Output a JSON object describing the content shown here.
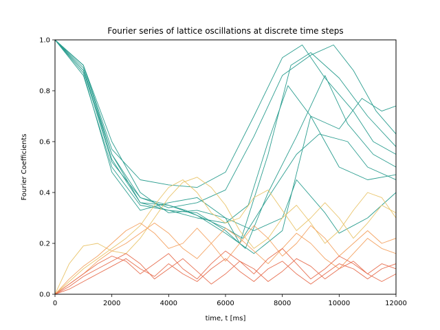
{
  "chart_data": {
    "type": "line",
    "title": "Fourier series of lattice oscillations at discrete time steps",
    "xlabel": "time, t [ms]",
    "ylabel": "Fourier Coefficients",
    "xlim": [
      0,
      12000
    ],
    "ylim": [
      0,
      1.0
    ],
    "xticks": [
      0,
      2000,
      4000,
      6000,
      8000,
      10000,
      12000
    ],
    "yticks": [
      0.0,
      0.2,
      0.4,
      0.6,
      0.8,
      1.0
    ],
    "xtick_labels": [
      "0",
      "2000",
      "4000",
      "6000",
      "8000",
      "10000",
      "12000"
    ],
    "ytick_labels": [
      "0.0",
      "0.2",
      "0.4",
      "0.6",
      "0.8",
      "1.0"
    ],
    "grid": false,
    "legend": false,
    "colors": {
      "teal": "#2a9d8f",
      "sand": "#e9c46a",
      "orange": "#f4a261",
      "coral": "#e76f51"
    },
    "series": [
      {
        "color": "#2a9d8f",
        "x": [
          0,
          1000,
          2000,
          3000,
          4000,
          5000,
          6000,
          7000,
          8000,
          8700,
          9500,
          10500,
          11200,
          12000
        ],
        "y": [
          1.0,
          0.9,
          0.57,
          0.45,
          0.43,
          0.42,
          0.48,
          0.7,
          0.93,
          0.98,
          0.85,
          0.72,
          0.6,
          0.55
        ]
      },
      {
        "color": "#2a9d8f",
        "x": [
          0,
          1000,
          2000,
          3000,
          4000,
          5000,
          6000,
          7000,
          8000,
          9000,
          9800,
          10500,
          11300,
          12000
        ],
        "y": [
          1.0,
          0.88,
          0.52,
          0.38,
          0.34,
          0.36,
          0.41,
          0.62,
          0.86,
          0.94,
          0.98,
          0.88,
          0.72,
          0.63
        ]
      },
      {
        "color": "#2a9d8f",
        "x": [
          0,
          1000,
          2000,
          3000,
          4000,
          5000,
          6000,
          6800,
          7500,
          8200,
          9000,
          10000,
          11000,
          12000
        ],
        "y": [
          1.0,
          0.9,
          0.55,
          0.36,
          0.33,
          0.3,
          0.28,
          0.35,
          0.6,
          0.82,
          0.7,
          0.5,
          0.45,
          0.47
        ]
      },
      {
        "color": "#2a9d8f",
        "x": [
          0,
          1000,
          2000,
          3000,
          4000,
          5000,
          6000,
          6500,
          7500,
          8300,
          9000,
          10000,
          11000,
          12000
        ],
        "y": [
          1.0,
          0.87,
          0.48,
          0.33,
          0.36,
          0.38,
          0.3,
          0.2,
          0.55,
          0.9,
          0.95,
          0.85,
          0.7,
          0.58
        ]
      },
      {
        "color": "#2a9d8f",
        "x": [
          0,
          1000,
          2000,
          3000,
          4000,
          5000,
          6000,
          6700,
          7500,
          8500,
          9500,
          10300,
          11200,
          12000
        ],
        "y": [
          1.0,
          0.86,
          0.5,
          0.35,
          0.33,
          0.32,
          0.25,
          0.18,
          0.4,
          0.62,
          0.86,
          0.67,
          0.55,
          0.5
        ]
      },
      {
        "color": "#2a9d8f",
        "x": [
          0,
          1000,
          2000,
          3000,
          4000,
          4600,
          5200,
          6000,
          6600,
          7500,
          8500,
          9300,
          10300,
          11000,
          12000
        ],
        "y": [
          1.0,
          0.88,
          0.55,
          0.38,
          0.35,
          0.33,
          0.3,
          0.26,
          0.22,
          0.38,
          0.55,
          0.63,
          0.6,
          0.5,
          0.45
        ]
      },
      {
        "color": "#2a9d8f",
        "x": [
          0,
          1000,
          2000,
          3000,
          4000,
          5000,
          6000,
          7000,
          8000,
          8500,
          9500,
          10000,
          11000,
          12000
        ],
        "y": [
          1.0,
          0.9,
          0.6,
          0.4,
          0.32,
          0.33,
          0.3,
          0.25,
          0.3,
          0.45,
          0.32,
          0.24,
          0.3,
          0.4
        ]
      },
      {
        "color": "#2a9d8f",
        "x": [
          0,
          1000,
          2000,
          3000,
          4000,
          5000,
          6000,
          7000,
          8000,
          9000,
          10000,
          10800,
          11500,
          12000
        ],
        "y": [
          1.0,
          0.89,
          0.53,
          0.36,
          0.35,
          0.31,
          0.24,
          0.16,
          0.25,
          0.7,
          0.65,
          0.77,
          0.72,
          0.74
        ]
      },
      {
        "color": "#e9c46a",
        "x": [
          0,
          500,
          1000,
          1500,
          2000,
          2500,
          3000,
          3500,
          4000,
          4500,
          5000,
          5500,
          6000,
          6500,
          7000,
          7500,
          8000,
          8500,
          9000,
          9500,
          10000,
          10500,
          11000,
          11500,
          12000
        ],
        "y": [
          0.0,
          0.12,
          0.19,
          0.2,
          0.17,
          0.16,
          0.22,
          0.3,
          0.38,
          0.44,
          0.46,
          0.42,
          0.35,
          0.25,
          0.18,
          0.22,
          0.3,
          0.35,
          0.28,
          0.2,
          0.25,
          0.33,
          0.4,
          0.38,
          0.3
        ]
      },
      {
        "color": "#e9c46a",
        "x": [
          0,
          500,
          1000,
          1500,
          2000,
          2500,
          3000,
          3500,
          4000,
          4500,
          5000,
          5500,
          6000,
          6500,
          7000,
          7500,
          8000,
          8500,
          9000,
          9500,
          10000,
          10500,
          11000,
          11500,
          12000
        ],
        "y": [
          0.0,
          0.05,
          0.1,
          0.14,
          0.18,
          0.22,
          0.27,
          0.35,
          0.42,
          0.45,
          0.4,
          0.32,
          0.28,
          0.3,
          0.38,
          0.41,
          0.33,
          0.25,
          0.3,
          0.36,
          0.3,
          0.22,
          0.28,
          0.35,
          0.32
        ]
      },
      {
        "color": "#f4a261",
        "x": [
          0,
          500,
          1000,
          1500,
          2000,
          2500,
          3000,
          3500,
          4000,
          4500,
          5000,
          5500,
          6000,
          6500,
          7000,
          7500,
          8000,
          8500,
          9000,
          9500,
          10000,
          10500,
          11000,
          11500,
          12000
        ],
        "y": [
          0.0,
          0.06,
          0.11,
          0.15,
          0.2,
          0.25,
          0.28,
          0.24,
          0.18,
          0.2,
          0.26,
          0.2,
          0.13,
          0.2,
          0.27,
          0.22,
          0.15,
          0.2,
          0.27,
          0.22,
          0.15,
          0.2,
          0.25,
          0.2,
          0.22
        ]
      },
      {
        "color": "#f4a261",
        "x": [
          0,
          500,
          1000,
          1500,
          2000,
          2500,
          3000,
          3500,
          4000,
          4500,
          5000,
          5500,
          6000,
          6500,
          7000,
          7500,
          8000,
          8500,
          9000,
          9500,
          10000,
          10500,
          11000,
          11500,
          12000
        ],
        "y": [
          0.0,
          0.04,
          0.08,
          0.13,
          0.17,
          0.2,
          0.24,
          0.28,
          0.24,
          0.18,
          0.14,
          0.2,
          0.26,
          0.22,
          0.17,
          0.12,
          0.18,
          0.24,
          0.2,
          0.14,
          0.1,
          0.16,
          0.22,
          0.18,
          0.16
        ]
      },
      {
        "color": "#e76f51",
        "x": [
          0,
          500,
          1000,
          1500,
          2000,
          2500,
          3000,
          3500,
          4000,
          4500,
          5000,
          5500,
          6000,
          6500,
          7000,
          7500,
          8000,
          8500,
          9000,
          9500,
          10000,
          10500,
          11000,
          11500,
          12000
        ],
        "y": [
          0.0,
          0.04,
          0.08,
          0.12,
          0.15,
          0.13,
          0.08,
          0.12,
          0.16,
          0.1,
          0.06,
          0.12,
          0.17,
          0.13,
          0.08,
          0.14,
          0.18,
          0.12,
          0.06,
          0.1,
          0.15,
          0.12,
          0.08,
          0.12,
          0.1
        ]
      },
      {
        "color": "#e76f51",
        "x": [
          0,
          500,
          1000,
          1500,
          2000,
          2500,
          3000,
          3500,
          4000,
          4500,
          5000,
          5500,
          6000,
          6500,
          7000,
          7500,
          8000,
          8500,
          9000,
          9500,
          10000,
          10500,
          11000,
          11500,
          12000
        ],
        "y": [
          0.0,
          0.03,
          0.07,
          0.1,
          0.13,
          0.16,
          0.12,
          0.06,
          0.1,
          0.14,
          0.09,
          0.04,
          0.08,
          0.13,
          0.1,
          0.05,
          0.09,
          0.14,
          0.11,
          0.06,
          0.1,
          0.13,
          0.08,
          0.05,
          0.08
        ]
      },
      {
        "color": "#e76f51",
        "x": [
          0,
          500,
          1000,
          1500,
          2000,
          2500,
          3000,
          3500,
          4000,
          4500,
          5000,
          5500,
          6000,
          6500,
          7000,
          7500,
          8000,
          8500,
          9000,
          9500,
          10000,
          10500,
          11000,
          11500,
          12000
        ],
        "y": [
          0.0,
          0.02,
          0.05,
          0.08,
          0.11,
          0.14,
          0.1,
          0.07,
          0.12,
          0.08,
          0.05,
          0.1,
          0.14,
          0.09,
          0.05,
          0.1,
          0.13,
          0.08,
          0.04,
          0.08,
          0.12,
          0.1,
          0.06,
          0.1,
          0.12
        ]
      }
    ]
  }
}
